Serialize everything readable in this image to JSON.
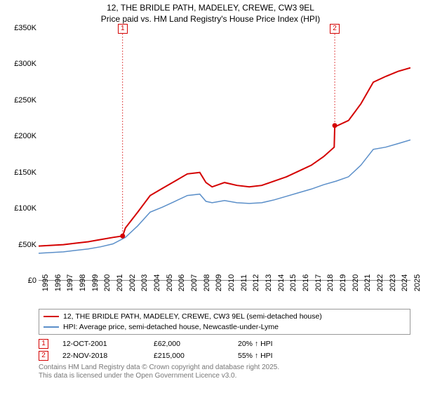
{
  "title_line1": "12, THE BRIDLE PATH, MADELEY, CREWE, CW3 9EL",
  "title_line2": "Price paid vs. HM Land Registry's House Price Index (HPI)",
  "chart": {
    "type": "line",
    "background_color": "#ffffff",
    "y_axis": {
      "min": 0,
      "max": 350000,
      "step": 50000,
      "labels": [
        "£0",
        "£50K",
        "£100K",
        "£150K",
        "£200K",
        "£250K",
        "£300K",
        "£350K"
      ]
    },
    "x_axis": {
      "min": 1995,
      "max": 2025,
      "labels": [
        "1995",
        "1996",
        "1997",
        "1998",
        "1999",
        "2000",
        "2001",
        "2002",
        "2003",
        "2004",
        "2005",
        "2006",
        "2007",
        "2008",
        "2009",
        "2010",
        "2011",
        "2012",
        "2013",
        "2014",
        "2015",
        "2016",
        "2017",
        "2018",
        "2019",
        "2020",
        "2021",
        "2022",
        "2023",
        "2024",
        "2025"
      ]
    },
    "series": [
      {
        "name": "property",
        "label": "12, THE BRIDLE PATH, MADELEY, CREWE, CW3 9EL (semi-detached house)",
        "color": "#d40000",
        "width": 2,
        "points": [
          [
            1995,
            48000
          ],
          [
            1996,
            49000
          ],
          [
            1997,
            50000
          ],
          [
            1998,
            52000
          ],
          [
            1999,
            54000
          ],
          [
            2000,
            57000
          ],
          [
            2001,
            60000
          ],
          [
            2001.78,
            62000
          ],
          [
            2002,
            73000
          ],
          [
            2003,
            95000
          ],
          [
            2004,
            118000
          ],
          [
            2005,
            128000
          ],
          [
            2006,
            138000
          ],
          [
            2007,
            148000
          ],
          [
            2008,
            150000
          ],
          [
            2008.5,
            136000
          ],
          [
            2009,
            130000
          ],
          [
            2010,
            136000
          ],
          [
            2011,
            132000
          ],
          [
            2012,
            130000
          ],
          [
            2013,
            132000
          ],
          [
            2014,
            138000
          ],
          [
            2015,
            144000
          ],
          [
            2016,
            152000
          ],
          [
            2017,
            160000
          ],
          [
            2018,
            172000
          ],
          [
            2018.85,
            185000
          ],
          [
            2018.89,
            215000
          ],
          [
            2019,
            214000
          ],
          [
            2020,
            222000
          ],
          [
            2021,
            245000
          ],
          [
            2022,
            275000
          ],
          [
            2023,
            283000
          ],
          [
            2024,
            290000
          ],
          [
            2025,
            295000
          ]
        ]
      },
      {
        "name": "hpi",
        "label": "HPI: Average price, semi-detached house, Newcastle-under-Lyme",
        "color": "#5b8fc9",
        "width": 1.5,
        "points": [
          [
            1995,
            38000
          ],
          [
            1996,
            39000
          ],
          [
            1997,
            40000
          ],
          [
            1998,
            42000
          ],
          [
            1999,
            44000
          ],
          [
            2000,
            47000
          ],
          [
            2001,
            51000
          ],
          [
            2002,
            60000
          ],
          [
            2003,
            76000
          ],
          [
            2004,
            95000
          ],
          [
            2005,
            102000
          ],
          [
            2006,
            110000
          ],
          [
            2007,
            118000
          ],
          [
            2008,
            120000
          ],
          [
            2008.5,
            110000
          ],
          [
            2009,
            108000
          ],
          [
            2010,
            111000
          ],
          [
            2011,
            108000
          ],
          [
            2012,
            107000
          ],
          [
            2013,
            108000
          ],
          [
            2014,
            112000
          ],
          [
            2015,
            117000
          ],
          [
            2016,
            122000
          ],
          [
            2017,
            127000
          ],
          [
            2018,
            133000
          ],
          [
            2019,
            138000
          ],
          [
            2020,
            144000
          ],
          [
            2021,
            160000
          ],
          [
            2022,
            182000
          ],
          [
            2023,
            185000
          ],
          [
            2024,
            190000
          ],
          [
            2025,
            195000
          ]
        ]
      }
    ],
    "markers": [
      {
        "id": "1",
        "year": 2001.78,
        "value": 62000,
        "color": "#d40000"
      },
      {
        "id": "2",
        "year": 2018.89,
        "value": 215000,
        "color": "#d40000"
      }
    ]
  },
  "legend": {
    "series1": "12, THE BRIDLE PATH, MADELEY, CREWE, CW3 9EL (semi-detached house)",
    "series2": "HPI: Average price, semi-detached house, Newcastle-under-Lyme"
  },
  "transactions": [
    {
      "id": "1",
      "date": "12-OCT-2001",
      "price": "£62,000",
      "delta": "20% ↑ HPI",
      "color": "#d40000"
    },
    {
      "id": "2",
      "date": "22-NOV-2018",
      "price": "£215,000",
      "delta": "55% ↑ HPI",
      "color": "#d40000"
    }
  ],
  "footnote_line1": "Contains HM Land Registry data © Crown copyright and database right 2025.",
  "footnote_line2": "This data is licensed under the Open Government Licence v3.0."
}
